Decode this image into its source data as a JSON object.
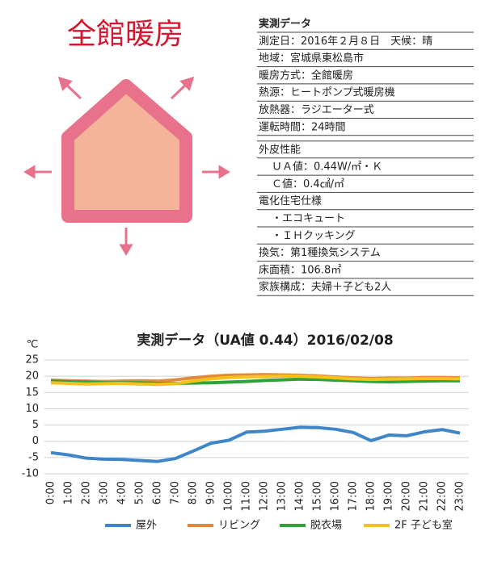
{
  "header": {
    "title": "全館暖房"
  },
  "spec": {
    "block1": {
      "title": "実測データ",
      "rows": [
        "測定日：2016年２月８日　天候：晴",
        "地域：宮城県東松島市",
        "暖房方式：全館暖房",
        "熱源：ヒートポンプ式暖房機",
        "放熱器：ラジエーター式",
        "運転時間：24時間"
      ]
    },
    "block2": {
      "rows": [
        "外皮性能",
        "ＵＡ値：0.44W/㎡・Ｋ",
        "Ｃ値：0.4㎠/㎡",
        "電化住宅仕様",
        "・エコキュート",
        "・ＩＨクッキング",
        "換気：第1種換気システム",
        "床面積：106.8㎡",
        "家族構成：夫婦＋子ども2人"
      ]
    }
  },
  "chart_data": {
    "type": "line",
    "title": "実測データ（UA値 0.44）2016/02/08",
    "y_label": "℃",
    "categories": [
      "0:00",
      "1:00",
      "2:00",
      "3:00",
      "4:00",
      "5:00",
      "6:00",
      "7:00",
      "8:00",
      "9:00",
      "10:00",
      "11:00",
      "12:00",
      "13:00",
      "14:00",
      "15:00",
      "16:00",
      "17:00",
      "18:00",
      "19:00",
      "20:00",
      "21:00",
      "22:00",
      "23:00"
    ],
    "series": [
      {
        "name": "屋外",
        "color": "#3f86c8",
        "values": [
          -3.5,
          -4.2,
          -5.2,
          -5.5,
          -5.6,
          -5.9,
          -6.2,
          -5.3,
          -3.0,
          -0.6,
          0.3,
          2.8,
          3.1,
          3.7,
          4.3,
          4.2,
          3.7,
          2.7,
          0.2,
          1.9,
          1.7,
          2.9,
          3.6,
          2.5
        ]
      },
      {
        "name": "リビング",
        "color": "#e08a3c",
        "values": [
          18.8,
          18.6,
          18.5,
          18.4,
          18.5,
          18.6,
          18.5,
          18.9,
          19.5,
          20.0,
          20.3,
          20.4,
          20.5,
          20.4,
          20.3,
          20.1,
          19.8,
          19.5,
          19.3,
          19.4,
          19.4,
          19.6,
          19.6,
          19.5
        ]
      },
      {
        "name": "脱衣場",
        "color": "#2fa33a",
        "values": [
          18.5,
          18.3,
          18.2,
          18.0,
          18.0,
          18.0,
          17.8,
          17.8,
          17.9,
          18.0,
          18.2,
          18.4,
          18.7,
          18.9,
          19.1,
          19.0,
          18.8,
          18.6,
          18.4,
          18.3,
          18.4,
          18.5,
          18.6,
          18.6
        ]
      },
      {
        "name": "2F 子ども室",
        "color": "#f5c21b",
        "values": [
          18.0,
          17.8,
          17.6,
          17.7,
          17.8,
          17.6,
          17.5,
          17.7,
          18.5,
          19.2,
          19.6,
          19.8,
          19.9,
          20.0,
          20.0,
          19.8,
          19.5,
          19.2,
          19.0,
          19.1,
          19.2,
          19.3,
          19.3,
          19.2
        ]
      }
    ],
    "ylim": [
      -10,
      25
    ],
    "yticks": [
      -10,
      -5,
      0,
      5,
      10,
      15,
      20,
      25
    ],
    "grid": true
  }
}
